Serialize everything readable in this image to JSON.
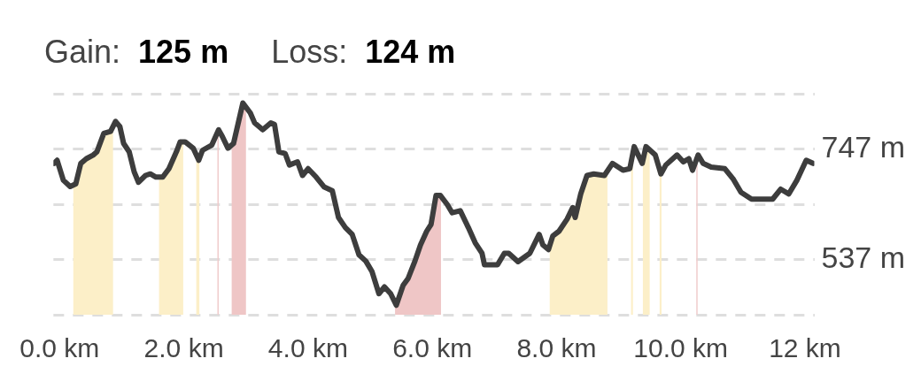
{
  "chart_data": {
    "type": "line",
    "title": "Gain: 125 m",
    "subtitle": "Loss: 124 m",
    "xlim": [
      -0.1,
      12.15
    ],
    "xticks": [
      {
        "value": 0,
        "label": "0.0 km"
      },
      {
        "value": 2,
        "label": "2.0 km"
      },
      {
        "value": 4,
        "label": "4.0 km"
      },
      {
        "value": 6,
        "label": "6.0 km"
      },
      {
        "value": 8,
        "label": "8.0 km"
      },
      {
        "value": 10,
        "label": "10.0 km"
      },
      {
        "value": 12,
        "label": "12 km"
      }
    ],
    "ylim": [
      432,
      852
    ],
    "yticks": [
      {
        "value": 432,
        "label": null
      },
      {
        "value": 537,
        "label": "537 m"
      },
      {
        "value": 642,
        "label": null
      },
      {
        "value": 747,
        "label": "747 m"
      },
      {
        "value": 852,
        "label": null
      }
    ],
    "grid": "y",
    "marker": "none",
    "line_style": "solid",
    "series": [
      {
        "color": "#3d3d3d",
        "x": [
          -0.09,
          -0.04,
          0.06,
          0.17,
          0.26,
          0.34,
          0.43,
          0.54,
          0.6,
          0.71,
          0.82,
          0.9,
          0.97,
          1.03,
          1.12,
          1.2,
          1.27,
          1.38,
          1.46,
          1.55,
          1.66,
          1.76,
          1.89,
          1.94,
          2.02,
          2.15,
          2.24,
          2.3,
          2.45,
          2.56,
          2.62,
          2.71,
          2.8,
          2.95,
          3.07,
          3.14,
          3.27,
          3.4,
          3.46,
          3.53,
          3.63,
          3.7,
          3.83,
          3.91,
          4.0,
          4.13,
          4.26,
          4.39,
          4.49,
          4.6,
          4.71,
          4.82,
          4.93,
          5.03,
          5.14,
          5.23,
          5.33,
          5.42,
          5.53,
          5.61,
          5.72,
          5.81,
          5.91,
          5.98,
          6.06,
          6.13,
          6.24,
          6.32,
          6.45,
          6.58,
          6.69,
          6.8,
          6.84,
          7.05,
          7.16,
          7.23,
          7.38,
          7.57,
          7.72,
          7.78,
          7.87,
          7.94,
          8.04,
          8.17,
          8.26,
          8.3,
          8.39,
          8.49,
          8.6,
          8.77,
          8.9,
          9.07,
          9.18,
          9.25,
          9.38,
          9.44,
          9.59,
          9.68,
          9.76,
          9.94,
          10.04,
          10.13,
          10.19,
          10.28,
          10.36,
          10.49,
          10.71,
          10.84,
          10.97,
          11.14,
          11.48,
          11.61,
          11.74,
          11.87,
          12.02,
          12.13
        ],
        "values": [
          720,
          726,
          688,
          676,
          681,
          720,
          729,
          736,
          742,
          777,
          781,
          800,
          790,
          758,
          742,
          704,
          684,
          697,
          700,
          694,
          694,
          710,
          745,
          761,
          761,
          749,
          726,
          745,
          755,
          784,
          771,
          749,
          758,
          835,
          816,
          797,
          784,
          797,
          794,
          742,
          739,
          717,
          723,
          697,
          710,
          694,
          675,
          668,
          617,
          598,
          585,
          546,
          534,
          514,
          472,
          485,
          472,
          450,
          488,
          501,
          534,
          565,
          591,
          604,
          659,
          659,
          642,
          626,
          630,
          598,
          569,
          549,
          527,
          527,
          549,
          549,
          533,
          549,
          585,
          565,
          556,
          582,
          591,
          614,
          636,
          617,
          662,
          697,
          700,
          697,
          720,
          707,
          710,
          752,
          720,
          752,
          736,
          700,
          717,
          736,
          723,
          729,
          707,
          736,
          720,
          713,
          710,
          691,
          665,
          652,
          652,
          671,
          662,
          688,
          726,
          720
        ]
      }
    ],
    "bands": [
      {
        "axis": "x",
        "from": 0.22,
        "to": 0.86,
        "color": "#fcefc8"
      },
      {
        "axis": "x",
        "from": 1.6,
        "to": 1.99,
        "color": "#fcefc8"
      },
      {
        "axis": "x",
        "from": 2.2,
        "to": 2.25,
        "color": "#fcefc8"
      },
      {
        "axis": "x",
        "from": 2.54,
        "to": 2.56,
        "color": "#f0cccc"
      },
      {
        "axis": "x",
        "from": 2.77,
        "to": 3.0,
        "color": "#efc6c6"
      },
      {
        "axis": "x",
        "from": 5.4,
        "to": 6.14,
        "color": "#efc6c6"
      },
      {
        "axis": "x",
        "from": 7.89,
        "to": 8.82,
        "color": "#fcefc8"
      },
      {
        "axis": "x",
        "from": 9.2,
        "to": 9.23,
        "color": "#fcefc8"
      },
      {
        "axis": "x",
        "from": 9.39,
        "to": 9.5,
        "color": "#fcefc8"
      },
      {
        "axis": "x",
        "from": 9.66,
        "to": 9.69,
        "color": "#fcefc8"
      },
      {
        "axis": "x",
        "from": 10.25,
        "to": 10.27,
        "color": "#f0cccc"
      }
    ]
  }
}
